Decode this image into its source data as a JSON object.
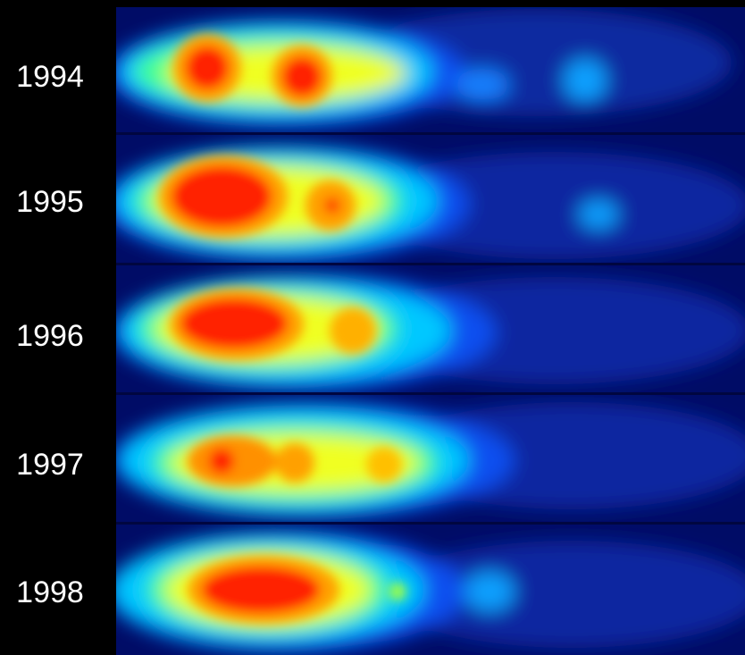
{
  "panels": [
    {
      "label": "1994"
    },
    {
      "label": "1995"
    },
    {
      "label": "1996"
    },
    {
      "label": "1997"
    },
    {
      "label": "1998"
    }
  ]
}
